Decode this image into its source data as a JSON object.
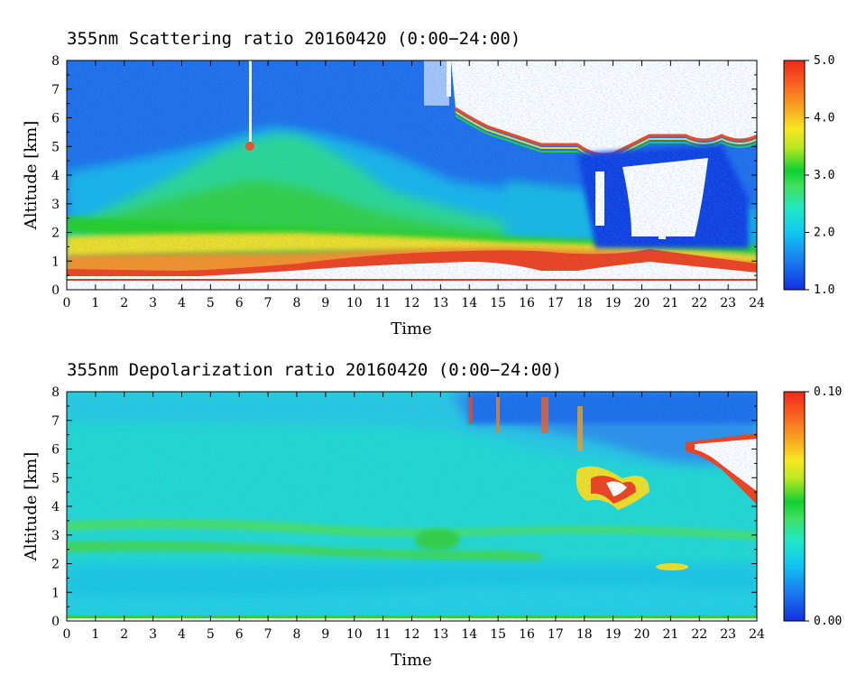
{
  "chart_data": [
    {
      "type": "heatmap",
      "title": "355nm Scattering ratio  20160420 (0:00−24:00)",
      "xlabel": "Time",
      "ylabel": "Altitude [km]",
      "x_ticks": [
        "0",
        "1",
        "2",
        "3",
        "4",
        "5",
        "6",
        "7",
        "8",
        "9",
        "10",
        "11",
        "12",
        "13",
        "14",
        "15",
        "16",
        "17",
        "18",
        "19",
        "20",
        "21",
        "22",
        "23",
        "24"
      ],
      "y_ticks": [
        "0",
        "1",
        "2",
        "3",
        "4",
        "5",
        "6",
        "7",
        "8"
      ],
      "xlim": [
        0,
        24
      ],
      "ylim": [
        0,
        8
      ],
      "colorbar": {
        "range": [
          1.0,
          5.0
        ],
        "tick_labels": [
          "1.0",
          "2.0",
          "3.0",
          "4.0",
          "5.0"
        ],
        "tick_values": [
          1.0,
          2.0,
          3.0,
          4.0,
          5.0
        ],
        "colormap": "rainbow blue-to-red"
      },
      "features": {
        "surface_layer_top_km": [
          [
            0,
            0.5
          ],
          [
            6,
            0.5
          ],
          [
            10,
            0.8
          ],
          [
            14,
            1.0
          ],
          [
            17,
            0.7
          ],
          [
            20,
            1.0
          ],
          [
            24,
            0.6
          ]
        ],
        "aerosol_layer_top_km": [
          [
            0,
            2.5
          ],
          [
            5,
            2.3
          ],
          [
            10,
            2.0
          ],
          [
            14,
            1.8
          ],
          [
            18,
            1.6
          ],
          [
            24,
            1.2
          ]
        ],
        "high_cloud_hours": [
          13,
          24
        ],
        "cloud_base_km_at_19_to_22h": 1.8
      }
    },
    {
      "type": "heatmap",
      "title": "355nm Depolarization ratio  20160420 (0:00−24:00)",
      "xlabel": "Time",
      "ylabel": "Altitude [km]",
      "x_ticks": [
        "0",
        "1",
        "2",
        "3",
        "4",
        "5",
        "6",
        "7",
        "8",
        "9",
        "10",
        "11",
        "12",
        "13",
        "14",
        "15",
        "16",
        "17",
        "18",
        "19",
        "20",
        "21",
        "22",
        "23",
        "24"
      ],
      "y_ticks": [
        "0",
        "1",
        "2",
        "3",
        "4",
        "5",
        "6",
        "7",
        "8"
      ],
      "xlim": [
        0,
        24
      ],
      "ylim": [
        0,
        8
      ],
      "colorbar": {
        "range": [
          0.0,
          0.1
        ],
        "tick_labels": [
          "0.00",
          "0.10"
        ],
        "tick_values": [
          0.0,
          0.1
        ],
        "colormap": "rainbow blue-to-red"
      },
      "features": {
        "elevated_layers_km": [
          2.5,
          3.3
        ],
        "high_depol_cloud_hours": [
          14,
          24
        ]
      }
    }
  ]
}
